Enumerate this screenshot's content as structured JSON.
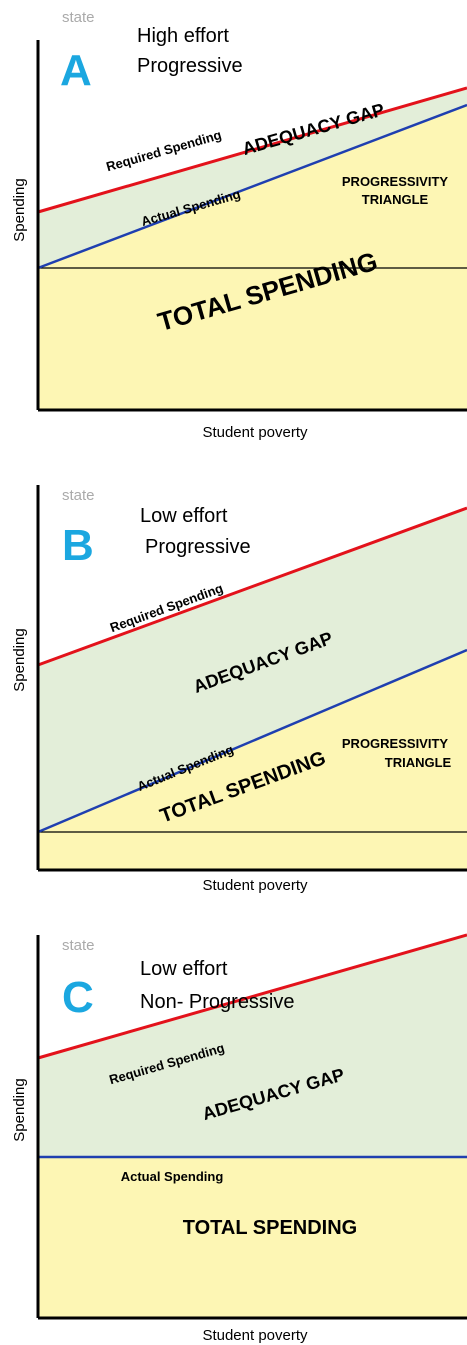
{
  "panels": [
    {
      "state": "state",
      "letter": "A",
      "effort": "High effort",
      "progressivity": "Progressive",
      "required": "Required Spending",
      "gap": "ADEQUACY GAP",
      "actual": "Actual Spending",
      "triangle": [
        "PROGRESSIVITY",
        "TRIANGLE"
      ],
      "total": "TOTAL SPENDING",
      "y_label": "Spending",
      "x_label": "Student poverty"
    },
    {
      "state": "state",
      "letter": "B",
      "effort": "Low effort",
      "progressivity": "Progressive",
      "required": "Required Spending",
      "gap": "ADEQUACY GAP",
      "actual": "Actual Spending",
      "triangle": [
        "PROGRESSIVITY",
        "TRIANGLE"
      ],
      "total": "TOTAL SPENDING",
      "y_label": "Spending",
      "x_label": "Student poverty"
    },
    {
      "state": "state",
      "letter": "C",
      "effort": "Low effort",
      "progressivity": "Non- Progressive",
      "required": "Required Spending",
      "gap": "ADEQUACY GAP",
      "actual": "Actual Spending",
      "total": "TOTAL SPENDING",
      "y_label": "Spending",
      "x_label": "Student poverty"
    }
  ]
}
